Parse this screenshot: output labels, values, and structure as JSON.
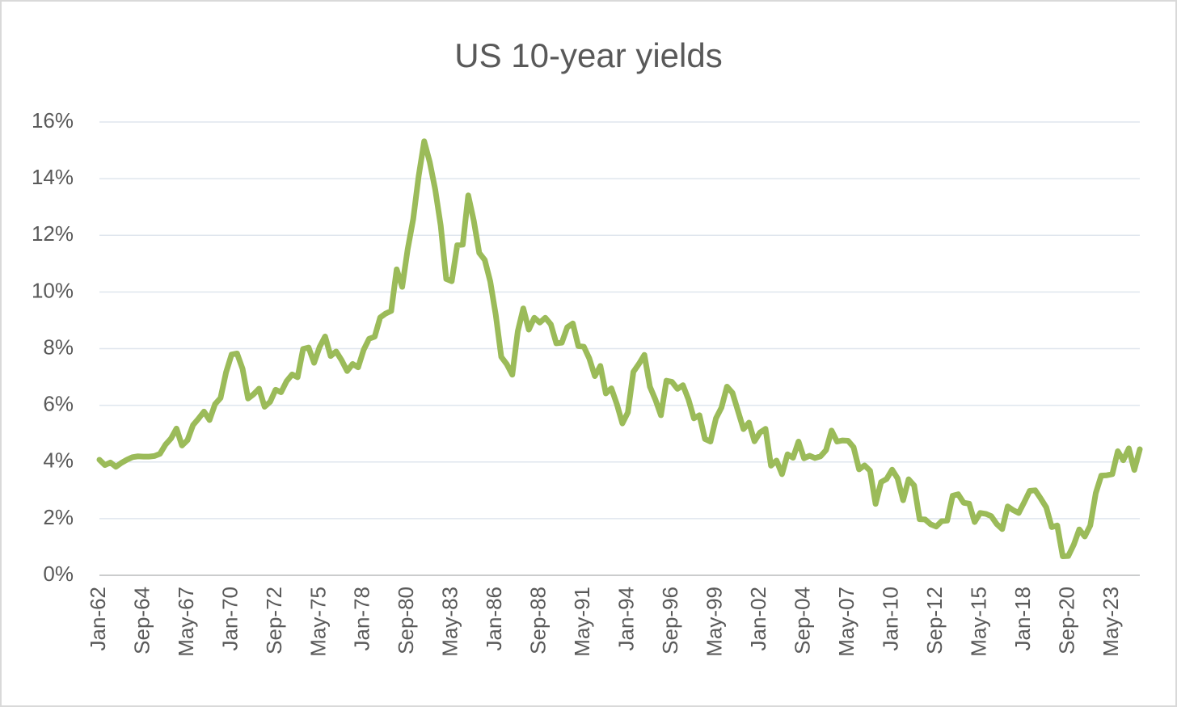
{
  "chart_data": {
    "type": "line",
    "title": "US 10-year yields",
    "categories": [
      "Jan-62",
      null,
      null,
      null,
      null,
      null,
      null,
      null,
      "Sep-64",
      null,
      null,
      null,
      null,
      null,
      null,
      null,
      "May-67",
      null,
      null,
      null,
      null,
      null,
      null,
      null,
      "Jan-70",
      null,
      null,
      null,
      null,
      null,
      null,
      null,
      "Sep-72",
      null,
      null,
      null,
      null,
      null,
      null,
      null,
      "May-75",
      null,
      null,
      null,
      null,
      null,
      null,
      null,
      "Jan-78",
      null,
      null,
      null,
      null,
      null,
      null,
      null,
      "Sep-80",
      null,
      null,
      null,
      null,
      null,
      null,
      null,
      "May-83",
      null,
      null,
      null,
      null,
      null,
      null,
      null,
      "Jan-86",
      null,
      null,
      null,
      null,
      null,
      null,
      null,
      "Sep-88",
      null,
      null,
      null,
      null,
      null,
      null,
      null,
      "May-91",
      null,
      null,
      null,
      null,
      null,
      null,
      null,
      "Jan-94",
      null,
      null,
      null,
      null,
      null,
      null,
      null,
      "Sep-96",
      null,
      null,
      null,
      null,
      null,
      null,
      null,
      "May-99",
      null,
      null,
      null,
      null,
      null,
      null,
      null,
      "Jan-02",
      null,
      null,
      null,
      null,
      null,
      null,
      null,
      "Sep-04",
      null,
      null,
      null,
      null,
      null,
      null,
      null,
      "May-07",
      null,
      null,
      null,
      null,
      null,
      null,
      null,
      "Jan-10",
      null,
      null,
      null,
      null,
      null,
      null,
      null,
      "Sep-12",
      null,
      null,
      null,
      null,
      null,
      null,
      null,
      "May-15",
      null,
      null,
      null,
      null,
      null,
      null,
      null,
      "Jan-18",
      null,
      null,
      null,
      null,
      null,
      null,
      null,
      "Sep-20",
      null,
      null,
      null,
      null,
      null,
      null,
      null,
      "May-23",
      null,
      null,
      null,
      null,
      null
    ],
    "values": [
      4.08,
      3.89,
      3.98,
      3.83,
      3.97,
      4.08,
      4.17,
      4.2,
      4.19,
      4.19,
      4.21,
      4.29,
      4.61,
      4.83,
      5.18,
      4.58,
      4.77,
      5.3,
      5.53,
      5.78,
      5.48,
      6.04,
      6.26,
      7.16,
      7.79,
      7.83,
      7.29,
      6.24,
      6.39,
      6.59,
      5.95,
      6.12,
      6.55,
      6.46,
      6.85,
      7.09,
      6.99,
      7.99,
      8.04,
      7.5,
      8.06,
      8.43,
      7.74,
      7.9,
      7.59,
      7.21,
      7.46,
      7.34,
      7.96,
      8.35,
      8.42,
      9.1,
      9.24,
      9.33,
      10.8,
      10.18,
      11.51,
      12.57,
      14.1,
      15.32,
      14.59,
      13.62,
      12.34,
      10.46,
      10.38,
      11.65,
      11.67,
      13.41,
      12.52,
      11.38,
      11.13,
      10.37,
      9.19,
      7.71,
      7.45,
      7.08,
      8.61,
      9.42,
      8.67,
      9.09,
      8.92,
      9.09,
      8.86,
      8.19,
      8.21,
      8.76,
      8.89,
      8.09,
      8.07,
      7.65,
      7.03,
      7.39,
      6.42,
      6.6,
      6.04,
      5.36,
      5.75,
      7.18,
      7.46,
      7.78,
      6.66,
      6.2,
      5.65,
      6.87,
      6.83,
      6.58,
      6.71,
      6.21,
      5.54,
      5.65,
      4.81,
      4.72,
      5.54,
      5.92,
      6.66,
      6.44,
      5.8,
      5.16,
      5.39,
      4.73,
      5.04,
      5.17,
      3.87,
      4.05,
      3.57,
      4.27,
      4.15,
      4.72,
      4.13,
      4.22,
      4.14,
      4.2,
      4.42,
      5.11,
      4.72,
      4.76,
      4.75,
      4.52,
      3.74,
      3.88,
      3.69,
      2.52,
      3.29,
      3.4,
      3.73,
      3.42,
      2.65,
      3.39,
      3.17,
      1.98,
      1.97,
      1.8,
      1.72,
      1.91,
      1.93,
      2.81,
      2.86,
      2.56,
      2.53,
      1.88,
      2.2,
      2.17,
      2.09,
      1.81,
      1.63,
      2.43,
      2.3,
      2.2,
      2.58,
      2.98,
      3.0,
      2.71,
      2.4,
      1.7,
      1.76,
      0.67,
      0.68,
      1.08,
      1.62,
      1.37,
      1.76,
      2.9,
      3.52,
      3.53,
      3.57,
      4.38,
      4.06,
      4.48,
      3.72,
      4.45
    ],
    "color": "#9bbb59",
    "ylim": [
      0,
      16
    ],
    "yticks": [
      {
        "value": 0,
        "label": "0%"
      },
      {
        "value": 2,
        "label": "2%"
      },
      {
        "value": 4,
        "label": "4%"
      },
      {
        "value": 6,
        "label": "6%"
      },
      {
        "value": 8,
        "label": "8%"
      },
      {
        "value": 10,
        "label": "10%"
      },
      {
        "value": 12,
        "label": "12%"
      },
      {
        "value": 14,
        "label": "14%"
      },
      {
        "value": 16,
        "label": "16%"
      }
    ],
    "grid": true
  }
}
